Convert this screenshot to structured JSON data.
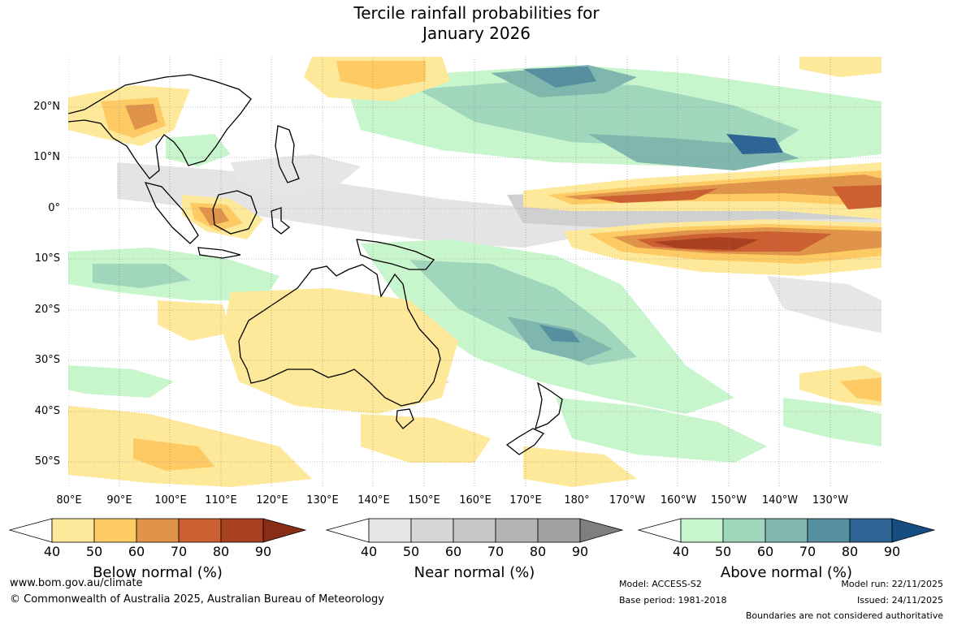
{
  "title": {
    "line1": "Tercile rainfall probabilities for",
    "line2": "January 2026"
  },
  "map": {
    "lat_labels": [
      "20°N",
      "10°N",
      "0°",
      "10°S",
      "20°S",
      "30°S",
      "40°S",
      "50°S"
    ],
    "lon_labels": [
      "80°E",
      "90°E",
      "100°E",
      "110°E",
      "120°E",
      "130°E",
      "140°E",
      "150°E",
      "160°E",
      "170°E",
      "180°",
      "170°W",
      "160°W",
      "150°W",
      "140°W",
      "130°W"
    ]
  },
  "legends": {
    "below": {
      "title": "Below normal (%)",
      "ticks": [
        "40",
        "50",
        "60",
        "70",
        "80",
        "90"
      ],
      "colors": [
        "#ffffff",
        "#fee89a",
        "#fdca64",
        "#e0944a",
        "#cc6033",
        "#a9401f",
        "#8a2d16"
      ]
    },
    "near": {
      "title": "Near normal (%)",
      "ticks": [
        "40",
        "50",
        "60",
        "70",
        "80",
        "90"
      ],
      "colors": [
        "#ffffff",
        "#e6e6e6",
        "#d6d6d6",
        "#c6c6c6",
        "#b4b4b4",
        "#a2a2a2",
        "#7f7f7f"
      ]
    },
    "above": {
      "title": "Above normal (%)",
      "ticks": [
        "40",
        "50",
        "60",
        "70",
        "80",
        "90"
      ],
      "colors": [
        "#ffffff",
        "#c7f5cc",
        "#9fd6bc",
        "#7fb6ae",
        "#568f9f",
        "#2f6595",
        "#154d80"
      ]
    }
  },
  "footer": {
    "website": "www.bom.gov.au/climate",
    "copyright": "© Commonwealth of Australia 2025, Australian Bureau of Meteorology",
    "model": "Model: ACCESS-S2",
    "base_period": "Base period: 1981-2018",
    "model_run": "Model run: 22/11/2025",
    "issued": "Issued: 24/11/2025",
    "disclaimer": "Boundaries are not considered authoritative"
  }
}
